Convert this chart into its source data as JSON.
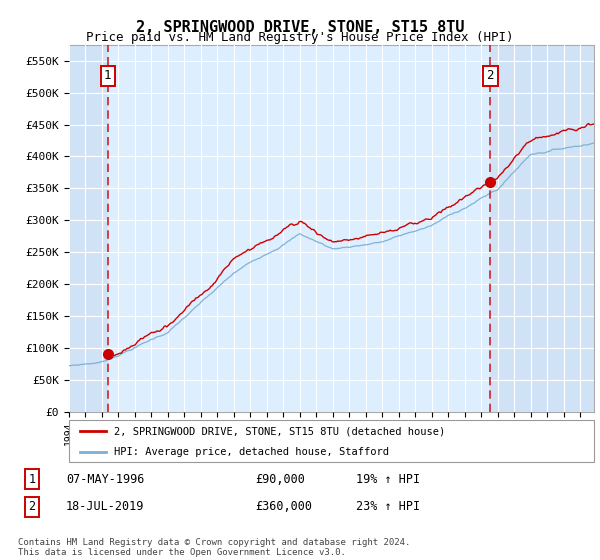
{
  "title": "2, SPRINGWOOD DRIVE, STONE, ST15 8TU",
  "subtitle": "Price paid vs. HM Land Registry's House Price Index (HPI)",
  "title_fontsize": 11,
  "subtitle_fontsize": 9,
  "ylabel_ticks": [
    "£0",
    "£50K",
    "£100K",
    "£150K",
    "£200K",
    "£250K",
    "£300K",
    "£350K",
    "£400K",
    "£450K",
    "£500K",
    "£550K"
  ],
  "ytick_values": [
    0,
    50000,
    100000,
    150000,
    200000,
    250000,
    300000,
    350000,
    400000,
    450000,
    500000,
    550000
  ],
  "ylim": [
    0,
    575000
  ],
  "xlim_start": 1994.0,
  "xlim_end": 2025.83,
  "sale1_x": 1996.35,
  "sale1_y": 90000,
  "sale2_x": 2019.54,
  "sale2_y": 360000,
  "sale1_label": "07-MAY-1996",
  "sale1_price": "£90,000",
  "sale1_hpi": "19% ↑ HPI",
  "sale2_label": "18-JUL-2019",
  "sale2_price": "£360,000",
  "sale2_hpi": "23% ↑ HPI",
  "red_color": "#cc0000",
  "blue_color": "#7bafd4",
  "plot_bg_color": "#ddeeff",
  "grid_color": "#ffffff",
  "legend_label_red": "2, SPRINGWOOD DRIVE, STONE, ST15 8TU (detached house)",
  "legend_label_blue": "HPI: Average price, detached house, Stafford",
  "footnote": "Contains HM Land Registry data © Crown copyright and database right 2024.\nThis data is licensed under the Open Government Licence v3.0."
}
